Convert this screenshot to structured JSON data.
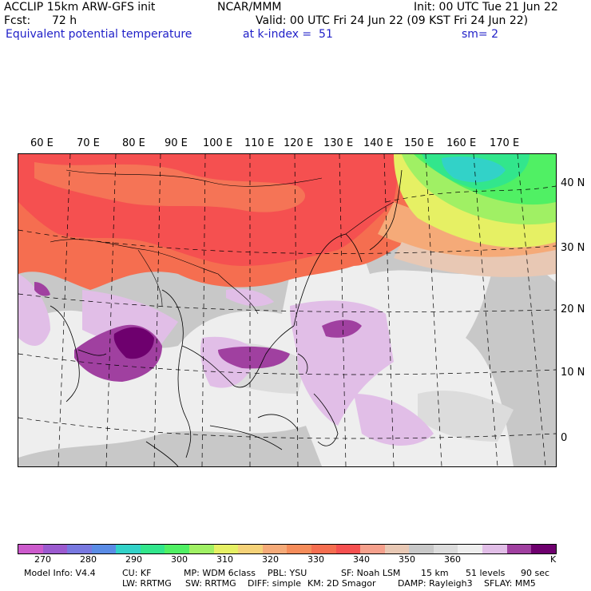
{
  "header": {
    "model": "ACCLIP 15km ARW-GFS init",
    "center": "NCAR/MMM",
    "init": "Init: 00 UTC Tue 21 Jun 22",
    "fcst_label": "Fcst:",
    "fcst_value": "72 h",
    "valid": "Valid: 00 UTC Fri 24 Jun 22 (09 KST Fri 24 Jun 22)",
    "field": "Equivalent potential temperature",
    "level": "at k-index =  51",
    "smoothing": "sm= 2"
  },
  "map": {
    "lon_labels": [
      "60 E",
      "70 E",
      "80 E",
      "90 E",
      "100 E",
      "110 E",
      "120 E",
      "130 E",
      "140 E",
      "150 E",
      "160 E",
      "170 E"
    ],
    "lat_labels": [
      "40 N",
      "30 N",
      "20 N",
      "10 N",
      "0"
    ]
  },
  "colorbar": {
    "colors": [
      "#cc5acc",
      "#9b5acf",
      "#7878e0",
      "#5a8ce6",
      "#32d2c8",
      "#32e68c",
      "#50f064",
      "#a0f064",
      "#e6f064",
      "#f5d278",
      "#f5aa78",
      "#f58c5a",
      "#f56e50",
      "#f55050",
      "#f5a08c",
      "#e8c8b4",
      "#c8c8c8",
      "#dcdcdc",
      "#eeeeee",
      "#e1bee7",
      "#a040a0",
      "#6e006e"
    ],
    "tick_labels": [
      "270",
      "280",
      "290",
      "300",
      "310",
      "320",
      "330",
      "340",
      "350",
      "360"
    ],
    "unit": "K"
  },
  "footer": {
    "line1": [
      "Model Info: V4.4",
      "CU: KF",
      "MP: WDM 6class",
      "PBL: YSU",
      "SF: Noah LSM",
      "15 km",
      "51 levels",
      "90 sec"
    ],
    "line2": [
      "LW: RRTMG",
      "SW: RRTMG",
      "DIFF: simple",
      "KM: 2D Smagor",
      "DAMP: Rayleigh3",
      "SFLAY: MM5"
    ]
  }
}
